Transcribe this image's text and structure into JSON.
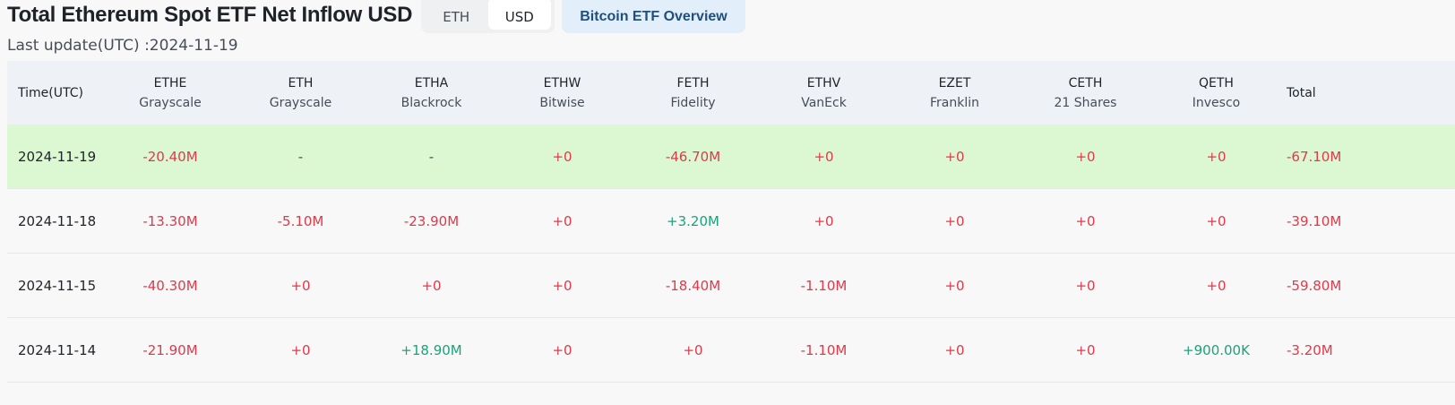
{
  "header": {
    "title": "Total Ethereum Spot ETF Net Inflow USD",
    "toggle": {
      "eth_label": "ETH",
      "usd_label": "USD",
      "active": "USD"
    },
    "overview_label": "Bitcoin ETF Overview",
    "last_update": "Last update(UTC) :2024-11-19"
  },
  "table": {
    "time_header": "Time(UTC)",
    "total_header": "Total",
    "columns": [
      {
        "ticker": "ETHE",
        "issuer": "Grayscale"
      },
      {
        "ticker": "ETH",
        "issuer": "Grayscale"
      },
      {
        "ticker": "ETHA",
        "issuer": "Blackrock"
      },
      {
        "ticker": "ETHW",
        "issuer": "Bitwise"
      },
      {
        "ticker": "FETH",
        "issuer": "Fidelity"
      },
      {
        "ticker": "ETHV",
        "issuer": "VanEck"
      },
      {
        "ticker": "EZET",
        "issuer": "Franklin"
      },
      {
        "ticker": "CETH",
        "issuer": "21 Shares"
      },
      {
        "ticker": "QETH",
        "issuer": "Invesco"
      }
    ],
    "rows": [
      {
        "date": "2024-11-19",
        "highlight": true,
        "values": [
          "-20.40M",
          "-",
          "-",
          "+0",
          "-46.70M",
          "+0",
          "+0",
          "+0",
          "+0"
        ],
        "total": "-67.10M"
      },
      {
        "date": "2024-11-18",
        "highlight": false,
        "values": [
          "-13.30M",
          "-5.10M",
          "-23.90M",
          "+0",
          "+3.20M",
          "+0",
          "+0",
          "+0",
          "+0"
        ],
        "total": "-39.10M"
      },
      {
        "date": "2024-11-15",
        "highlight": false,
        "values": [
          "-40.30M",
          "+0",
          "+0",
          "+0",
          "-18.40M",
          "-1.10M",
          "+0",
          "+0",
          "+0"
        ],
        "total": "-59.80M"
      },
      {
        "date": "2024-11-14",
        "highlight": false,
        "values": [
          "-21.90M",
          "+0",
          "+18.90M",
          "+0",
          "+0",
          "-1.10M",
          "+0",
          "+0",
          "+900.00K"
        ],
        "total": "-3.20M"
      }
    ]
  },
  "colors": {
    "negative": "#e0394a",
    "positive": "#17a57a",
    "highlight_row": "#dcf8d2",
    "overview_button": "#e3eefb"
  }
}
